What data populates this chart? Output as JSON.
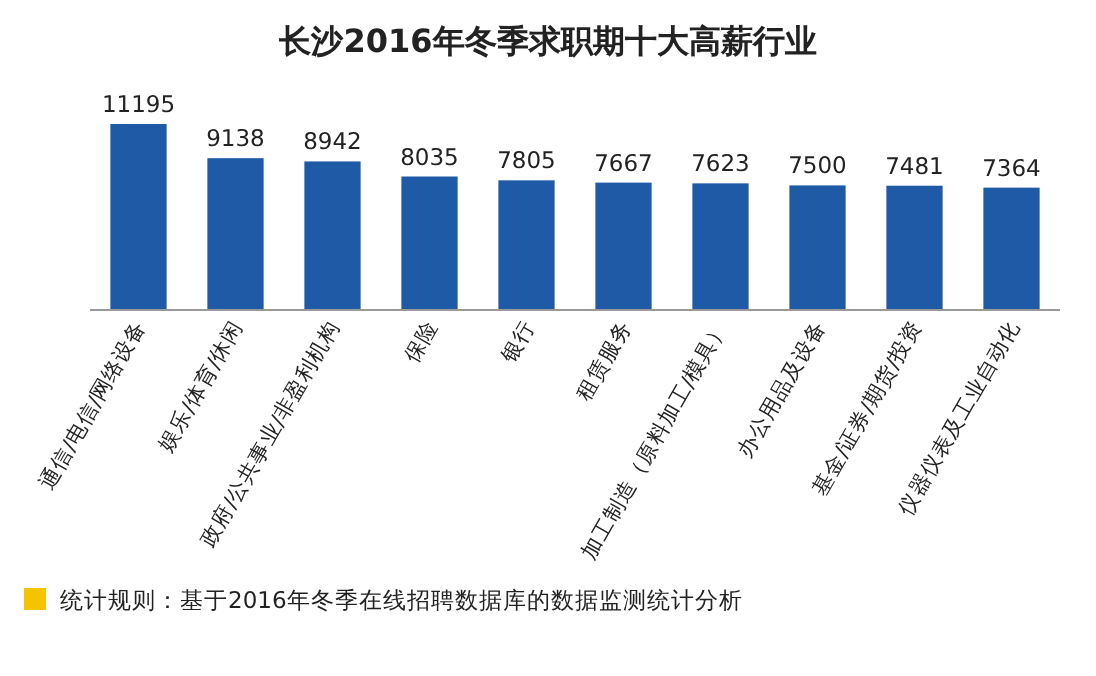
{
  "chart_data": {
    "type": "bar",
    "title": "长沙2016年冬季求职期十大高薪行业",
    "categories": [
      "通信/电信/网络设备",
      "娱乐/体育/休闲",
      "政府/公共事业/非盈利机构",
      "保险",
      "银行",
      "租赁服务",
      "加工制造（原料加工/模具）",
      "办公用品及设备",
      "基金/证券/期货/投资",
      "仪器仪表及工业自动化"
    ],
    "values": [
      11195,
      9138,
      8942,
      8035,
      7805,
      7667,
      7623,
      7500,
      7481,
      7364
    ],
    "color": "#1f5aa6",
    "data_labels": true,
    "annotations": [
      "统计规则：基于2016年冬季在线招聘数据库的数据监测统计分析"
    ]
  }
}
